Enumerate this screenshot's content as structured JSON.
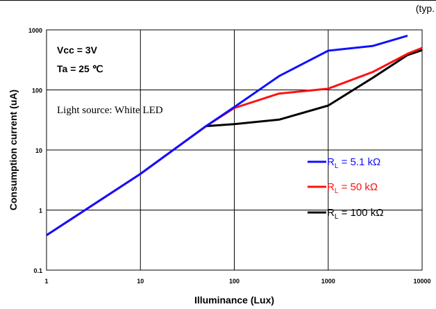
{
  "header_note": "(typ.",
  "chart_data": {
    "type": "line",
    "xscale": "log",
    "yscale": "log",
    "xlim": [
      1,
      10000
    ],
    "ylim": [
      0.1,
      1000
    ],
    "xlabel": "Illuminance (Lux)",
    "ylabel": "Consumption current (uA)",
    "xticks": [
      "1",
      "10",
      "100",
      "1000",
      "10000"
    ],
    "yticks": [
      "0.1",
      "1",
      "10",
      "100",
      "1000"
    ],
    "grid": true,
    "annotations": [
      "Vcc = 3V",
      "Ta = 25 ℃",
      "Light source: White LED"
    ],
    "legend_position": "center-right",
    "series": [
      {
        "name": "R",
        "subscript": "L",
        "suffix": " = 5.1 kΩ",
        "color": "#1010ff",
        "x": [
          1,
          10,
          50,
          100,
          300,
          1000,
          3000,
          7000
        ],
        "y": [
          0.38,
          4,
          25,
          52,
          170,
          450,
          540,
          800
        ]
      },
      {
        "name": "R",
        "subscript": "L",
        "suffix": " = 50 kΩ",
        "color": "#ff1010",
        "x": [
          1,
          10,
          50,
          100,
          300,
          1000,
          3000,
          7000,
          10000
        ],
        "y": [
          0.38,
          4,
          25,
          50,
          87,
          105,
          200,
          400,
          500
        ]
      },
      {
        "name": "R",
        "subscript": "L",
        "suffix": " = 100 kΩ",
        "color": "#000000",
        "x": [
          50,
          100,
          300,
          1000,
          3000,
          7000,
          10000
        ],
        "y": [
          25,
          27,
          32,
          55,
          160,
          380,
          460
        ]
      }
    ]
  }
}
